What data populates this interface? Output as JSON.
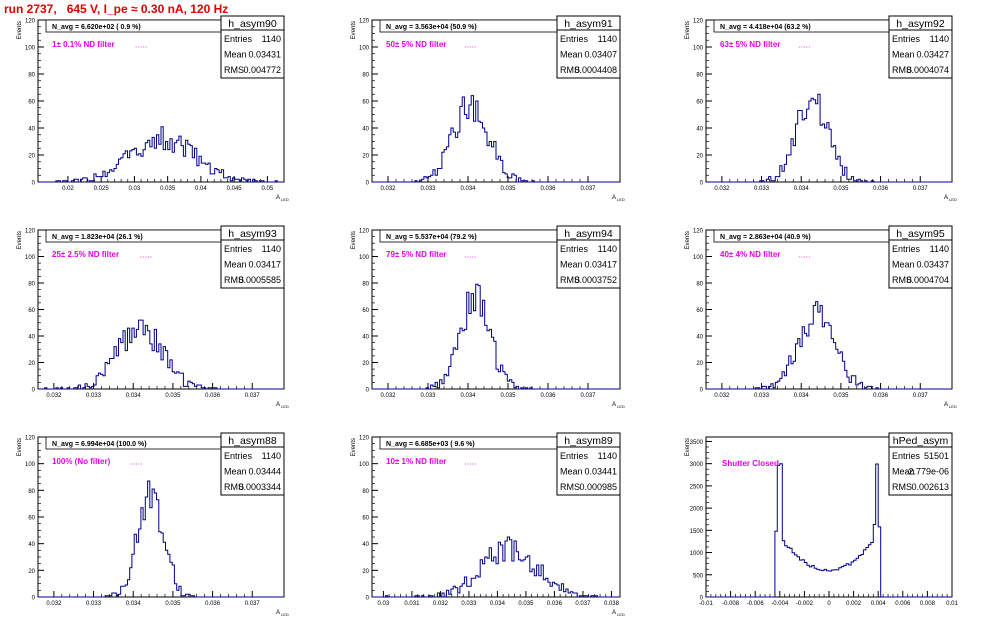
{
  "title": "run 2737,   645 V, I_pe ≈ 0.30 nA, 120 Hz",
  "colors": {
    "title": "#e00000",
    "histogram": "#00008b",
    "annotation": "#e600e6",
    "text": "#000000"
  },
  "chart_data": [
    {
      "type": "bar",
      "name": "h_asym90",
      "navg_label": "N_avg = 6.620e+02 ( 0.9 %)",
      "filter_label": "1± 0.1% ND filter",
      "stats": {
        "Entries": "1140",
        "Mean": "0.03431",
        "RMS": "0.004772"
      },
      "ylabel": "Events",
      "xlabel": "A",
      "xlabel_sub": "LED",
      "xlim": [
        0.0155,
        0.0525
      ],
      "ylim": [
        0,
        120
      ],
      "xticks": [
        "0.02",
        "0.025",
        "0.03",
        "0.035",
        "0.04",
        "0.045",
        "0.05"
      ],
      "yticks": [
        "0",
        "20",
        "40",
        "60",
        "80",
        "100",
        "120"
      ],
      "mean": 0.03431,
      "rms": 0.004772,
      "entries": 1140,
      "bins": 110,
      "shape": "gauss"
    },
    {
      "type": "bar",
      "name": "h_asym91",
      "navg_label": "N_avg = 3.563e+04 (50.9 %)",
      "filter_label": "50± 5% ND filter",
      "stats": {
        "Entries": "1140",
        "Mean": "0.03407",
        "RMS": "0.0004408"
      },
      "ylabel": "Events",
      "xlabel": "A",
      "xlabel_sub": "LED",
      "xlim": [
        0.0316,
        0.0378
      ],
      "ylim": [
        0,
        120
      ],
      "xticks": [
        "0.032",
        "0.033",
        "0.034",
        "0.035",
        "0.036",
        "0.037"
      ],
      "yticks": [
        "0",
        "20",
        "40",
        "60",
        "80",
        "100",
        "120"
      ],
      "mean": 0.03407,
      "rms": 0.0004408,
      "entries": 1140,
      "bins": 110,
      "shape": "gauss"
    },
    {
      "type": "bar",
      "name": "h_asym92",
      "navg_label": "N_avg = 4.418e+04 (63.2 %)",
      "filter_label": "63± 5% ND filter",
      "stats": {
        "Entries": "1140",
        "Mean": "0.03427",
        "RMS": "0.0004074"
      },
      "ylabel": "Events",
      "xlabel": "A",
      "xlabel_sub": "LED",
      "xlim": [
        0.0316,
        0.0378
      ],
      "ylim": [
        0,
        120
      ],
      "xticks": [
        "0.032",
        "0.033",
        "0.034",
        "0.035",
        "0.036",
        "0.037"
      ],
      "yticks": [
        "0",
        "20",
        "40",
        "60",
        "80",
        "100",
        "120"
      ],
      "mean": 0.03427,
      "rms": 0.0004074,
      "entries": 1140,
      "bins": 110,
      "shape": "gauss"
    },
    {
      "type": "bar",
      "name": "h_asym93",
      "navg_label": "N_avg = 1.823e+04 (26.1 %)",
      "filter_label": "25± 2.5% ND filter",
      "stats": {
        "Entries": "1140",
        "Mean": "0.03417",
        "RMS": "0.0005585"
      },
      "ylabel": "Events",
      "xlabel": "A",
      "xlabel_sub": "LED",
      "xlim": [
        0.0316,
        0.0378
      ],
      "ylim": [
        0,
        120
      ],
      "xticks": [
        "0.032",
        "0.033",
        "0.034",
        "0.035",
        "0.036",
        "0.037"
      ],
      "yticks": [
        "0",
        "20",
        "40",
        "60",
        "80",
        "100",
        "120"
      ],
      "mean": 0.03417,
      "rms": 0.0005585,
      "entries": 1140,
      "bins": 110,
      "shape": "gauss"
    },
    {
      "type": "bar",
      "name": "h_asym94",
      "navg_label": "N_avg = 5.537e+04 (79.2 %)",
      "filter_label": "79± 5% ND filter",
      "stats": {
        "Entries": "1140",
        "Mean": "0.03417",
        "RMS": "0.0003752"
      },
      "ylabel": "Events",
      "xlabel": "A",
      "xlabel_sub": "LED",
      "xlim": [
        0.0316,
        0.0378
      ],
      "ylim": [
        0,
        120
      ],
      "xticks": [
        "0.032",
        "0.033",
        "0.034",
        "0.035",
        "0.036",
        "0.037"
      ],
      "yticks": [
        "0",
        "20",
        "40",
        "60",
        "80",
        "100",
        "120"
      ],
      "mean": 0.03417,
      "rms": 0.0003752,
      "entries": 1140,
      "bins": 110,
      "shape": "gauss"
    },
    {
      "type": "bar",
      "name": "h_asym95",
      "navg_label": "N_avg = 2.863e+04 (40.9 %)",
      "filter_label": "40± 4% ND filter",
      "stats": {
        "Entries": "1140",
        "Mean": "0.03437",
        "RMS": "0.0004704"
      },
      "ylabel": "Events",
      "xlabel": "A",
      "xlabel_sub": "LED",
      "xlim": [
        0.0316,
        0.0378
      ],
      "ylim": [
        0,
        120
      ],
      "xticks": [
        "0.032",
        "0.033",
        "0.034",
        "0.035",
        "0.036",
        "0.037"
      ],
      "yticks": [
        "0",
        "20",
        "40",
        "60",
        "80",
        "100",
        "120"
      ],
      "mean": 0.03437,
      "rms": 0.0004704,
      "entries": 1140,
      "bins": 110,
      "shape": "gauss"
    },
    {
      "type": "bar",
      "name": "h_asym88",
      "navg_label": "N_avg = 6.994e+04 (100.0 %)",
      "filter_label": "100% (No filter)",
      "stats": {
        "Entries": "1140",
        "Mean": "0.03444",
        "RMS": "0.0003344"
      },
      "ylabel": "Events",
      "xlabel": "A",
      "xlabel_sub": "LED",
      "xlim": [
        0.0316,
        0.0378
      ],
      "ylim": [
        0,
        120
      ],
      "xticks": [
        "0.032",
        "0.033",
        "0.034",
        "0.035",
        "0.036",
        "0.037"
      ],
      "yticks": [
        "0",
        "20",
        "40",
        "60",
        "80",
        "100",
        "120"
      ],
      "mean": 0.03444,
      "rms": 0.0003344,
      "entries": 1140,
      "bins": 110,
      "shape": "gauss"
    },
    {
      "type": "bar",
      "name": "h_asym89",
      "navg_label": "N_avg = 6.685e+03 ( 9.6 %)",
      "filter_label": "10± 1% ND filter",
      "stats": {
        "Entries": "1140",
        "Mean": "0.03441",
        "RMS": "0.000985"
      },
      "ylabel": "Events",
      "xlabel": "A",
      "xlabel_sub": "LED",
      "xlim": [
        0.0296,
        0.0383
      ],
      "ylim": [
        0,
        120
      ],
      "xticks": [
        "0.03",
        "0.031",
        "0.032",
        "0.033",
        "0.034",
        "0.035",
        "0.036",
        "0.037",
        "0.038"
      ],
      "yticks": [
        "0",
        "20",
        "40",
        "60",
        "80",
        "100",
        "120"
      ],
      "mean": 0.03441,
      "rms": 0.000985,
      "entries": 1140,
      "bins": 110,
      "shape": "gauss"
    },
    {
      "type": "bar",
      "name": "hPed_asym",
      "navg_label": "",
      "filter_label": "Shutter Closed",
      "stats": {
        "Entries": "51501",
        "Mean": "-2.779e-06",
        "RMS": "0.002613"
      },
      "ylabel": "Events",
      "xlabel": "",
      "xlabel_sub": "",
      "xlim": [
        -0.01,
        0.01
      ],
      "ylim": [
        0,
        3600
      ],
      "xticks": [
        "-0.01",
        "-0.008",
        "-0.006",
        "-0.004",
        "-0.002",
        "0",
        "0.002",
        "0.004",
        "0.006",
        "0.008",
        "0.01"
      ],
      "yticks": [
        "0",
        "500",
        "1000",
        "1500",
        "2000",
        "2500",
        "3000",
        "3500"
      ],
      "mean": -2.8e-06,
      "rms": 0.002613,
      "entries": 51501,
      "bins": 100,
      "shape": "bimodal",
      "peak_heights": [
        3480,
        3050
      ],
      "valley_height": 600,
      "range": [
        -0.0043,
        0.0042
      ]
    }
  ]
}
